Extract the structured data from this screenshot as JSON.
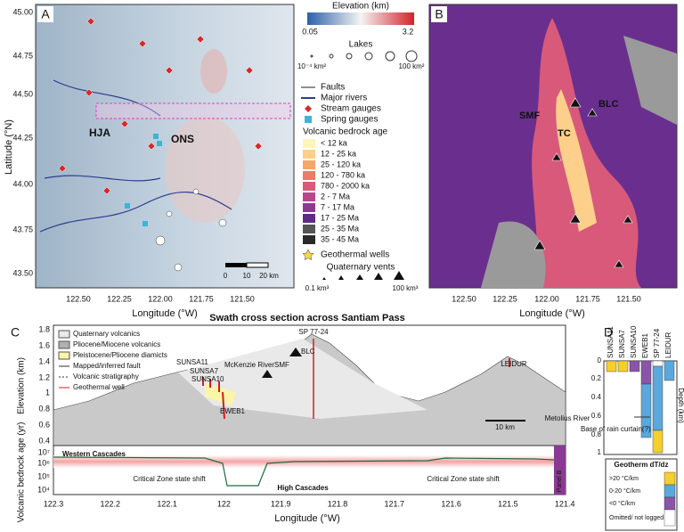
{
  "panel_a": {
    "label": "A",
    "annotations": [
      "HJA",
      "ONS"
    ],
    "scale_labels": [
      "0",
      "10",
      "20 km"
    ],
    "x_label": "Longitude (°W)",
    "y_label": "Latitude (°N)",
    "x_ticks": [
      "122.50",
      "122.25",
      "122.00",
      "121.75",
      "121.50"
    ],
    "y_ticks": [
      "45.00",
      "44.75",
      "44.50",
      "44.25",
      "44.00",
      "43.75",
      "43.50"
    ]
  },
  "legend": {
    "elevation_title": "Elevation (km)",
    "elevation_min": "0.05",
    "elevation_max": "3.2",
    "lakes_title": "Lakes",
    "lakes_min": "10⁻⁴ km²",
    "lakes_max": "100 km²",
    "line_items": [
      "Faults",
      "Major rivers",
      "Stream gauges",
      "Spring gauges"
    ],
    "age_title": "Volcanic bedrock age",
    "age_classes": [
      "< 12 ka",
      "12 - 25 ka",
      "25 - 120 ka",
      "120 - 780 ka",
      "780 - 2000 ka",
      "2 - 7 Ma",
      "7 - 17 Ma",
      "17 - 25 Ma",
      "25 - 35 Ma",
      "35 - 45 Ma"
    ],
    "geothermal": "Geothermal wells",
    "vents_title": "Quaternary vents",
    "vents_min": "0.1 km³",
    "vents_max": "100 km³"
  },
  "panel_b": {
    "label": "B",
    "annotations": [
      "SMF",
      "TC",
      "BLC"
    ],
    "x_label": "Longitude (°W)",
    "x_ticks": [
      "122.50",
      "122.25",
      "122.00",
      "121.75",
      "121.50"
    ]
  },
  "panel_c": {
    "label": "C",
    "title": "Swath cross section across Santiam Pass",
    "legend_items": [
      "Quaternary volcanics",
      "Pliocene/Miocene volcanics",
      "Pleistocene/Pliocene diamicts",
      "Mapped/inferred fault",
      "Volcanic stratigraphy",
      "Geothermal well"
    ],
    "annotations": [
      "SP 77-24",
      "BLC",
      "SMF",
      "SUNSA11",
      "SUNSA7",
      "SUNSA10",
      "McKenzie River",
      "EWEB1",
      "LEIDUR",
      "Metolius River",
      "10 km"
    ],
    "lower_annotations": [
      "Western Cascades",
      "High Cascades",
      "Critical Zone state shift",
      "Critical Zone state shift",
      "Panel B"
    ],
    "y_label_top": "Elevation (km)",
    "y_ticks_top": [
      "1.8",
      "1.6",
      "1.4",
      "1.2",
      "1",
      "0.8",
      "0.6",
      "0.4"
    ],
    "y_label_bottom": "Volcanic bedrock age (yr)",
    "y_ticks_bottom": [
      "10⁷",
      "10⁶",
      "10⁵",
      "10⁴"
    ],
    "x_label": "Longitude (°W)",
    "x_ticks": [
      "122.3",
      "122.2",
      "122.1",
      "122",
      "121.9",
      "121.8",
      "121.7",
      "121.6",
      "121.5",
      "121.4"
    ]
  },
  "panel_d": {
    "label": "D",
    "wells": [
      "SUNSA11",
      "SUNSA7",
      "SUNSA10",
      "EWEB1",
      "SP 77-24",
      "LEIDUR"
    ],
    "y_label": "Depth (km)",
    "y_ticks": [
      "0",
      "0.2",
      "0.4",
      "0.6",
      "0.8",
      "1"
    ],
    "annotation": "Base of rain curtain(?)",
    "legend_title": "Geotherm dT/dz",
    "legend_items": [
      ">20 °C/km",
      "0-20 °C/km",
      "<0 °C/km",
      "Omitted/ not logged"
    ]
  }
}
